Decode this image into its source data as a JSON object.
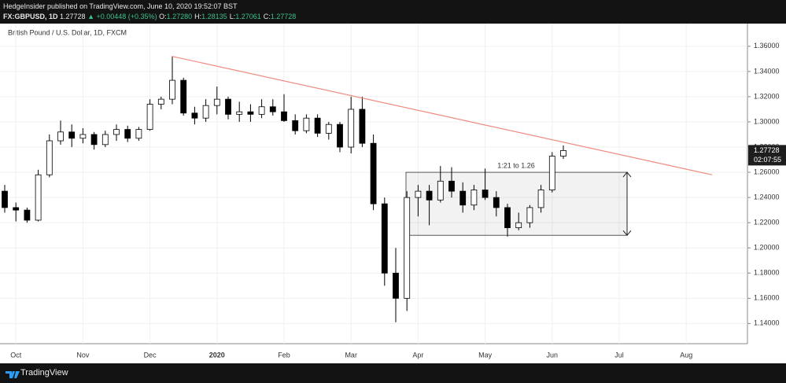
{
  "header": {
    "publisher": "HedgeInsider published on TradingView.com, June 10, 2020 19:52:07 BST",
    "symbol": "FX:GBPUSD, 1D",
    "price": "1.27728",
    "change": "▲ +0.00448 (+0.35%)",
    "ohlc": [
      {
        "key": "O:",
        "value": "1.27280"
      },
      {
        "key": "H:",
        "value": "1.28135"
      },
      {
        "key": "L:",
        "value": "1.27061"
      },
      {
        "key": "C:",
        "value": "1.27728"
      }
    ]
  },
  "footer": "TradingView",
  "chart_data": {
    "type": "candlestick",
    "title": "British Pound / U.S. Dollar, 1D, FXCM",
    "categories": [
      null,
      "Oct",
      null,
      null,
      null,
      null,
      null,
      "Nov",
      null,
      null,
      null,
      null,
      null,
      "Dec",
      null,
      null,
      null,
      null,
      null,
      "2020",
      null,
      null,
      null,
      null,
      null,
      "Feb",
      null,
      null,
      null,
      null,
      null,
      "Mar",
      null,
      null,
      null,
      null,
      null,
      "Apr",
      null,
      null,
      null,
      null,
      null,
      "May",
      null,
      null,
      null,
      null,
      null,
      "Jun",
      null,
      null,
      null,
      null,
      null,
      "Jul",
      null,
      null,
      null,
      null,
      null,
      "Aug",
      null,
      null,
      null,
      null
    ],
    "open": [
      1.245,
      1.232,
      1.23,
      1.222,
      1.258,
      1.285,
      1.292,
      1.287,
      1.29,
      1.282,
      1.29,
      1.294,
      1.287,
      1.294,
      1.314,
      1.318,
      1.333,
      1.307,
      1.303,
      1.313,
      1.318,
      1.306,
      1.308,
      1.306,
      1.312,
      1.308,
      1.301,
      1.293,
      1.303,
      1.291,
      1.298,
      1.28,
      1.31,
      1.283,
      1.235,
      1.18,
      1.16,
      1.24,
      1.245,
      1.238,
      1.253,
      1.245,
      1.234,
      1.246,
      1.24,
      1.232,
      1.216,
      1.22,
      1.232,
      1.246,
      1.2728,
      null,
      null,
      null,
      null,
      null,
      null,
      null,
      null,
      null,
      null,
      null,
      null,
      null,
      null,
      null
    ],
    "high": [
      1.25,
      1.236,
      1.232,
      1.262,
      1.29,
      1.301,
      1.298,
      1.295,
      1.292,
      1.293,
      1.298,
      1.297,
      1.296,
      1.318,
      1.32,
      1.352,
      1.335,
      1.312,
      1.318,
      1.328,
      1.32,
      1.316,
      1.314,
      1.318,
      1.318,
      1.322,
      1.306,
      1.306,
      1.306,
      1.3,
      1.3,
      1.32,
      1.32,
      1.29,
      1.24,
      1.2,
      1.245,
      1.25,
      1.25,
      1.265,
      1.264,
      1.252,
      1.25,
      1.263,
      1.245,
      1.235,
      1.228,
      1.234,
      1.25,
      1.276,
      1.28135,
      null,
      null,
      null,
      null,
      null,
      null,
      null,
      null,
      null,
      null,
      null,
      null,
      null,
      null,
      null
    ],
    "low": [
      1.228,
      1.221,
      1.22,
      1.221,
      1.256,
      1.282,
      1.28,
      1.283,
      1.278,
      1.28,
      1.285,
      1.284,
      1.285,
      1.293,
      1.31,
      1.314,
      1.305,
      1.298,
      1.3,
      1.306,
      1.302,
      1.3,
      1.3,
      1.303,
      1.305,
      1.3,
      1.29,
      1.291,
      1.288,
      1.286,
      1.276,
      1.275,
      1.28,
      1.23,
      1.17,
      1.141,
      1.15,
      1.225,
      1.218,
      1.236,
      1.24,
      1.228,
      1.23,
      1.238,
      1.225,
      1.209,
      1.214,
      1.216,
      1.228,
      1.244,
      1.27061,
      null,
      null,
      null,
      null,
      null,
      null,
      null,
      null,
      null,
      null,
      null,
      null,
      null,
      null,
      null
    ],
    "close": [
      1.232,
      1.23,
      1.222,
      1.258,
      1.285,
      1.292,
      1.287,
      1.29,
      1.282,
      1.29,
      1.294,
      1.287,
      1.294,
      1.314,
      1.318,
      1.333,
      1.307,
      1.303,
      1.313,
      1.318,
      1.306,
      1.308,
      1.306,
      1.312,
      1.308,
      1.301,
      1.293,
      1.303,
      1.291,
      1.298,
      1.28,
      1.31,
      1.283,
      1.235,
      1.18,
      1.16,
      1.24,
      1.245,
      1.238,
      1.253,
      1.245,
      1.234,
      1.246,
      1.24,
      1.232,
      1.216,
      1.22,
      1.232,
      1.246,
      1.2728,
      1.27728,
      null,
      null,
      null,
      null,
      null,
      null,
      null,
      null,
      null,
      null,
      null,
      null,
      null,
      null,
      null
    ],
    "up_color": "#ffffff",
    "down_color": "#000000",
    "ylim": [
      1.124,
      1.378
    ],
    "yticks": [
      {
        "value": 1.14,
        "label": "1.14000"
      },
      {
        "value": 1.16,
        "label": "1.16000"
      },
      {
        "value": 1.18,
        "label": "1.18000"
      },
      {
        "value": 1.2,
        "label": "1.20000"
      },
      {
        "value": 1.22,
        "label": "1.22000"
      },
      {
        "value": 1.24,
        "label": "1.24000"
      },
      {
        "value": 1.26,
        "label": "1.26000"
      },
      {
        "value": 1.28,
        "label": "1.28000"
      },
      {
        "value": 1.3,
        "label": "1.30000"
      },
      {
        "value": 1.32,
        "label": "1.32000"
      },
      {
        "value": 1.34,
        "label": "1.34000"
      },
      {
        "value": 1.36,
        "label": "1.36000"
      }
    ],
    "grid": true,
    "last_price": {
      "value": 1.27728,
      "label": "1.27728"
    },
    "countdown": "02:07:55",
    "trendline": [
      1.352,
      1.258
    ],
    "trendline_color": "#f08a80",
    "range_box": {
      "label": "1:21 to 1.26",
      "values": [
        1.21,
        1.26
      ]
    }
  }
}
